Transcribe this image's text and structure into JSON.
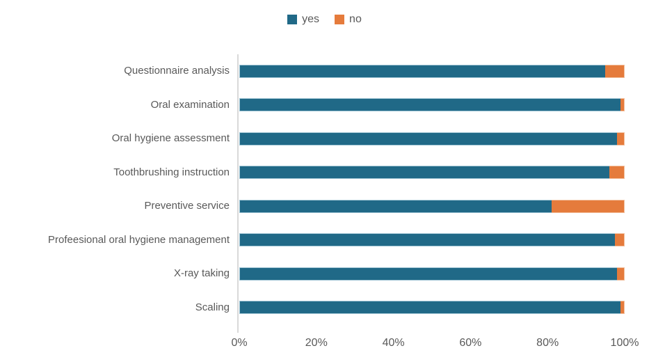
{
  "chart_data": {
    "type": "bar",
    "orientation": "horizontal",
    "stacked": true,
    "title": "",
    "categories": [
      "Questionnaire analysis",
      "Oral examination",
      "Oral hygiene assessment",
      "Toothbrushing instruction",
      "Preventive service",
      "Profeesional oral hygiene management",
      "X-ray taking",
      "Scaling"
    ],
    "series": [
      {
        "name": "yes",
        "color": "#206987",
        "values": [
          95,
          99,
          98,
          96,
          81,
          97.5,
          98,
          99
        ]
      },
      {
        "name": "no",
        "color": "#E57B3C",
        "values": [
          5,
          1,
          2,
          4,
          19,
          2.5,
          2,
          1
        ]
      }
    ],
    "xlabel": "",
    "ylabel": "",
    "xlim": [
      0,
      100
    ],
    "x_ticks": [
      "0%",
      "20%",
      "40%",
      "60%",
      "80%",
      "100%"
    ],
    "legend_position": "top-center",
    "grid": false
  },
  "style": {
    "background": "#FFFFFF",
    "axis_line_color": "#D9D9D9",
    "text_color": "#595959"
  }
}
